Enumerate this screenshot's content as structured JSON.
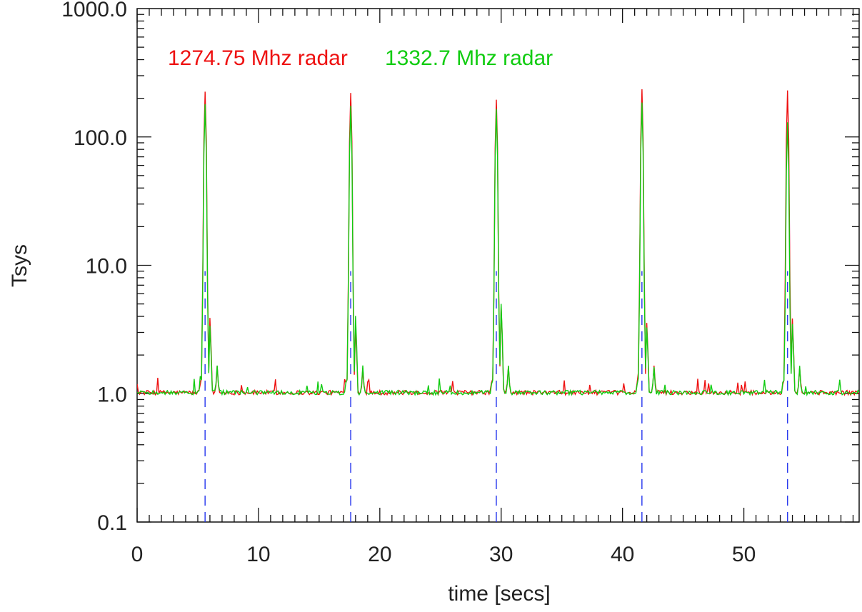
{
  "chart_data": {
    "type": "line",
    "title": "",
    "xlabel": "time [secs]",
    "ylabel": "Tsys",
    "xlim": [
      0,
      59.5
    ],
    "ylim": [
      0.1,
      1000
    ],
    "yscale": "log",
    "grid": false,
    "x_ticks": [
      0,
      10,
      20,
      30,
      40,
      50
    ],
    "x_tick_labels": [
      "0",
      "10",
      "20",
      "30",
      "40",
      "50"
    ],
    "y_ticks": [
      0.1,
      1,
      10,
      100,
      1000
    ],
    "y_tick_labels": [
      "0.1",
      "1.0",
      "10.0",
      "100.0",
      "1000.0"
    ],
    "legend_position": "top-left",
    "baseline": 1.0,
    "pulse_times": [
      5.6,
      17.6,
      29.6,
      41.6,
      53.6
    ],
    "series": [
      {
        "name": "1274.75 Mhz radar",
        "color": "#ee1111",
        "pulse_peaks": [
          225,
          220,
          195,
          235,
          230
        ],
        "secondary_peaks": [
          4.0,
          3.5,
          5.0,
          3.7,
          4.0
        ]
      },
      {
        "name": "1332.7  Mhz radar",
        "color": "#11cc11",
        "pulse_peaks": [
          180,
          175,
          165,
          185,
          130
        ],
        "secondary_peaks": [
          3.5,
          4.2,
          5.2,
          3.4,
          3.6
        ]
      }
    ],
    "markers": {
      "type": "vertical-dashed",
      "color": "#2233ee",
      "x": [
        5.6,
        17.6,
        29.6,
        41.6,
        53.6
      ],
      "y_top": 9
    }
  }
}
